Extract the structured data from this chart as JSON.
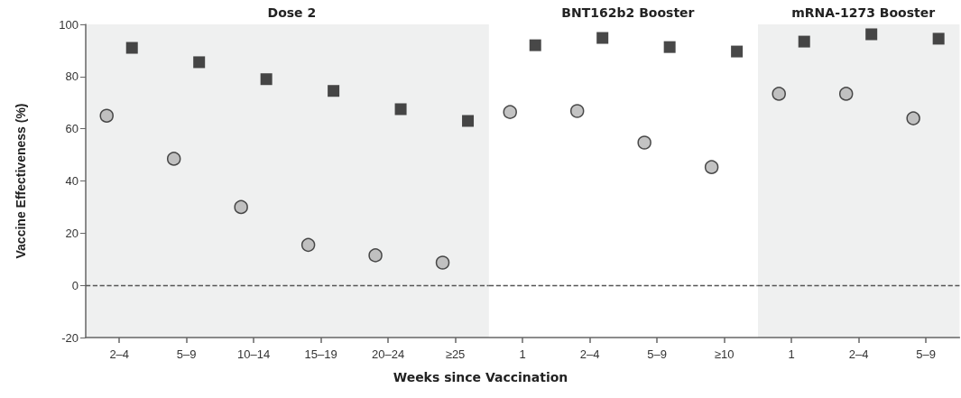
{
  "chart_data": [
    {
      "type": "scatter",
      "title": "Dose 2",
      "ylabel": "Vaccine Effectiveness (%)",
      "categories": [
        "2–4",
        "5–9",
        "10–14",
        "15–19",
        "20–24",
        "≥25"
      ],
      "ylim": [
        -20,
        100
      ],
      "yticks": [
        -20,
        0,
        20,
        40,
        60,
        80,
        100
      ],
      "grid": false,
      "series": [
        {
          "color": "#b4b4b4",
          "marker": "circle",
          "values": [
            65,
            48.5,
            30,
            15.5,
            11.5,
            8.7
          ]
        },
        {
          "color": "#1a1a1a",
          "marker": "square",
          "values": [
            91,
            85.5,
            79,
            74.5,
            67.5,
            63
          ]
        }
      ],
      "ref_lines": [
        {
          "axis": "y",
          "value": 0,
          "color": "#555555",
          "line_style": "dashed"
        }
      ],
      "bands": [
        {
          "axis": "x",
          "from": "2–4",
          "to": "≥25",
          "color": "#eff0f0"
        }
      ]
    },
    {
      "type": "scatter",
      "title": "BNT162b2 Booster",
      "xlabel": "Weeks since Vaccination",
      "categories": [
        "1",
        "2–4",
        "5–9",
        "≥10"
      ],
      "ylim": [
        -20,
        100
      ],
      "yticks": [
        -20,
        0,
        20,
        40,
        60,
        80,
        100
      ],
      "tick_labels": "x",
      "grid": false,
      "series": [
        {
          "color": "#b4b4b4",
          "marker": "circle",
          "values": [
            66.4,
            66.8,
            54.7,
            45.3
          ]
        },
        {
          "color": "#1a1a1a",
          "marker": "square",
          "values": [
            92,
            94.8,
            91.3,
            89.6
          ]
        }
      ],
      "ref_lines": [
        {
          "axis": "y",
          "value": 0,
          "color": "#555555",
          "line_style": "dashed"
        }
      ]
    },
    {
      "type": "scatter",
      "title": "mRNA-1273 Booster",
      "categories": [
        "1",
        "2–4",
        "5–9"
      ],
      "ylim": [
        -20,
        100
      ],
      "yticks": [
        -20,
        0,
        20,
        40,
        60,
        80,
        100
      ],
      "tick_labels": "x",
      "grid": false,
      "series": [
        {
          "color": "#b4b4b4",
          "marker": "circle",
          "values": [
            73.4,
            73.4,
            64
          ]
        },
        {
          "color": "#1a1a1a",
          "marker": "square",
          "values": [
            93.4,
            96.2,
            94.5
          ]
        }
      ],
      "ref_lines": [
        {
          "axis": "y",
          "value": 0,
          "color": "#555555",
          "line_style": "dashed"
        }
      ],
      "bands": [
        {
          "axis": "x",
          "from": "1",
          "to": "5–9",
          "color": "#eff0f0"
        }
      ]
    }
  ]
}
